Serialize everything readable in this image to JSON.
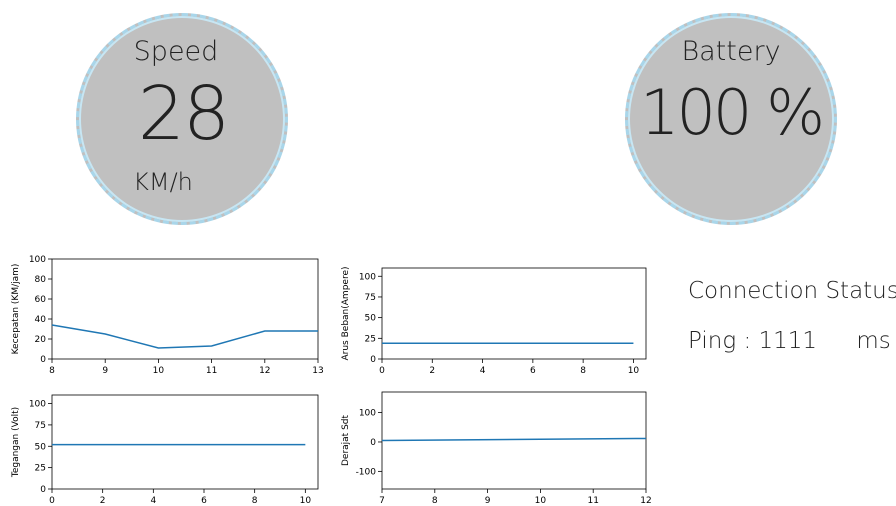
{
  "speed": {
    "title": "Speed",
    "value": "28",
    "unit": "KM/h"
  },
  "battery": {
    "title": "Battery",
    "value": "100 %"
  },
  "connection": {
    "status_label": "Connection Status",
    "ping_label": "Ping :",
    "ping_value": "1111",
    "ping_unit": "ms"
  },
  "chart_data": [
    {
      "type": "line",
      "ylabel": "Kecepatan (KM/jam)",
      "x": [
        8,
        9,
        10,
        11,
        12,
        13
      ],
      "y": [
        34,
        25,
        11,
        13,
        28,
        28
      ],
      "xlim": [
        8,
        13
      ],
      "ylim": [
        0,
        100
      ],
      "xticks": [
        8,
        9,
        10,
        11,
        12,
        13
      ],
      "yticks": [
        0,
        20,
        40,
        60,
        80,
        100
      ],
      "color": "#1f77b4"
    },
    {
      "type": "line",
      "ylabel": "Arus Beban(Ampere)",
      "x": [
        0,
        10
      ],
      "y": [
        19,
        19
      ],
      "xlim": [
        0,
        10.5
      ],
      "ylim": [
        0,
        110
      ],
      "xticks": [
        0,
        2,
        4,
        6,
        8,
        10
      ],
      "yticks": [
        0,
        25,
        50,
        75,
        100
      ],
      "color": "#1f77b4"
    },
    {
      "type": "line",
      "ylabel": "Tegangan (Volt)",
      "x": [
        0,
        10
      ],
      "y": [
        52,
        52
      ],
      "xlim": [
        0,
        10.5
      ],
      "ylim": [
        0,
        110
      ],
      "xticks": [
        0,
        2,
        4,
        6,
        8,
        10
      ],
      "yticks": [
        0,
        25,
        50,
        75,
        100
      ],
      "color": "#1f77b4"
    },
    {
      "type": "line",
      "ylabel": "Derajat Sdt",
      "x": [
        7,
        12
      ],
      "y": [
        5,
        12
      ],
      "xlim": [
        7,
        12
      ],
      "ylim": [
        -160,
        170
      ],
      "xticks": [
        7,
        8,
        9,
        10,
        11,
        12
      ],
      "yticks": [
        -100,
        0,
        100
      ],
      "color": "#1f77b4"
    }
  ]
}
